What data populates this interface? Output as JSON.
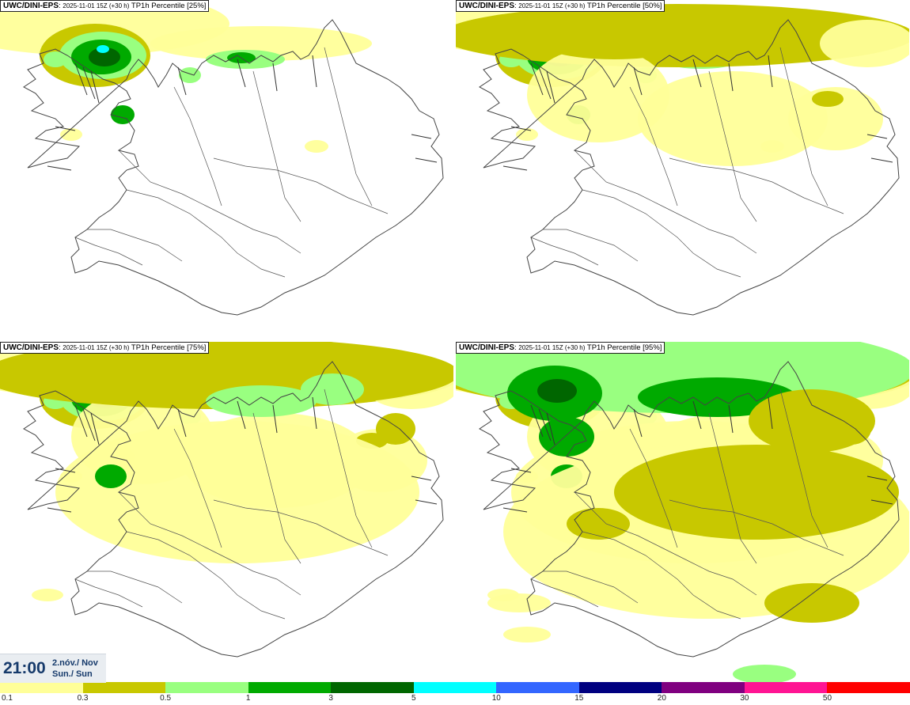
{
  "panels": [
    {
      "model": "UWC/DINI-EPS",
      "run": "2025-11-01 15Z (+30 h)",
      "field": "TP1h Percentile [25%]",
      "percentile": 25
    },
    {
      "model": "UWC/DINI-EPS",
      "run": "2025-11-01 15Z (+30 h)",
      "field": "TP1h Percentile [50%]",
      "percentile": 50
    },
    {
      "model": "UWC/DINI-EPS",
      "run": "2025-11-01 15Z (+30 h)",
      "field": "TP1h Percentile [75%]",
      "percentile": 75
    },
    {
      "model": "UWC/DINI-EPS",
      "run": "2025-11-01 15Z (+30 h)",
      "field": "TP1h Percentile [95%]",
      "percentile": 95
    }
  ],
  "valid_time": {
    "time": "21:00",
    "date_line": "2.nóv./ Nov",
    "day_line": "Sun./ Sun"
  },
  "legend": {
    "labels": [
      "0.1",
      "0.3",
      "0.5",
      "1",
      "3",
      "5",
      "10",
      "15",
      "20",
      "30",
      "50"
    ],
    "colors": [
      "#ffff99",
      "#c8c800",
      "#99ff80",
      "#00aa00",
      "#006600",
      "#00ffff",
      "#3366ff",
      "#000080",
      "#800080",
      "#ff1493",
      "#ff0000"
    ]
  }
}
